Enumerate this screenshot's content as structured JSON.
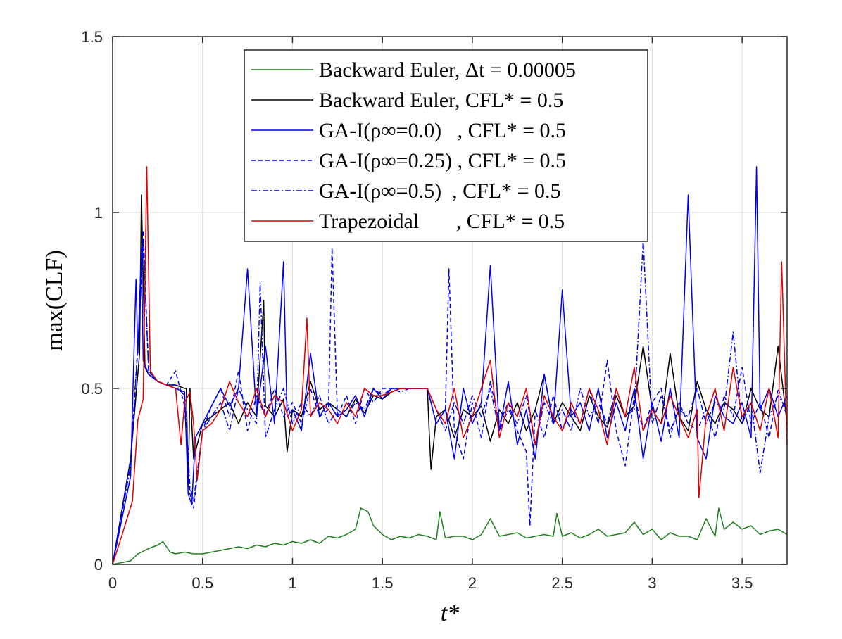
{
  "chart_data": {
    "type": "line",
    "title": "",
    "xlabel": "t*",
    "ylabel": "max(CLF)",
    "xlim": [
      0,
      3.75
    ],
    "ylim": [
      0,
      1.5
    ],
    "xticks": [
      "0",
      "0.5",
      "1",
      "1.5",
      "2",
      "2.5",
      "3",
      "3.5"
    ],
    "yticks": [
      "0",
      "0.5",
      "1",
      "1.5"
    ],
    "grid": true,
    "legend_position": "top-center",
    "series": [
      {
        "name": "Backward Euler, Δt = 0.00005",
        "color": "#1f7f1f",
        "style": "solid",
        "x": [
          0,
          0.05,
          0.1,
          0.14,
          0.2,
          0.25,
          0.28,
          0.32,
          0.35,
          0.4,
          0.45,
          0.5,
          0.55,
          0.6,
          0.65,
          0.7,
          0.75,
          0.8,
          0.85,
          0.9,
          0.95,
          1.0,
          1.05,
          1.1,
          1.15,
          1.2,
          1.25,
          1.3,
          1.35,
          1.38,
          1.42,
          1.45,
          1.5,
          1.55,
          1.6,
          1.65,
          1.7,
          1.75,
          1.8,
          1.82,
          1.85,
          1.9,
          1.95,
          2.0,
          2.05,
          2.1,
          2.15,
          2.2,
          2.25,
          2.3,
          2.35,
          2.4,
          2.45,
          2.47,
          2.5,
          2.55,
          2.6,
          2.65,
          2.7,
          2.75,
          2.8,
          2.85,
          2.9,
          2.95,
          3.0,
          3.05,
          3.1,
          3.15,
          3.2,
          3.25,
          3.3,
          3.35,
          3.37,
          3.4,
          3.45,
          3.5,
          3.55,
          3.6,
          3.65,
          3.7,
          3.75
        ],
        "values": [
          0,
          0.005,
          0.01,
          0.03,
          0.045,
          0.055,
          0.065,
          0.035,
          0.03,
          0.035,
          0.03,
          0.03,
          0.035,
          0.04,
          0.045,
          0.05,
          0.045,
          0.055,
          0.05,
          0.06,
          0.055,
          0.065,
          0.06,
          0.07,
          0.06,
          0.08,
          0.075,
          0.085,
          0.1,
          0.16,
          0.15,
          0.11,
          0.085,
          0.07,
          0.08,
          0.075,
          0.085,
          0.08,
          0.07,
          0.15,
          0.075,
          0.08,
          0.08,
          0.07,
          0.085,
          0.13,
          0.08,
          0.085,
          0.09,
          0.075,
          0.08,
          0.085,
          0.08,
          0.145,
          0.08,
          0.09,
          0.075,
          0.085,
          0.1,
          0.08,
          0.085,
          0.09,
          0.12,
          0.085,
          0.1,
          0.07,
          0.09,
          0.08,
          0.08,
          0.07,
          0.13,
          0.08,
          0.16,
          0.1,
          0.12,
          0.1,
          0.11,
          0.085,
          0.095,
          0.1,
          0.085
        ]
      },
      {
        "name": "Backward Euler, CFL* = 0.5",
        "color": "#000000",
        "style": "solid",
        "x": [
          0,
          0.1,
          0.15,
          0.16,
          0.18,
          0.2,
          0.25,
          0.3,
          0.35,
          0.4,
          0.41,
          0.42,
          0.43,
          0.45,
          0.5,
          0.55,
          0.6,
          0.65,
          0.7,
          0.75,
          0.8,
          0.84,
          0.85,
          0.9,
          0.95,
          0.97,
          1.0,
          1.05,
          1.1,
          1.15,
          1.2,
          1.25,
          1.3,
          1.35,
          1.4,
          1.45,
          1.5,
          1.55,
          1.6,
          1.65,
          1.7,
          1.75,
          1.76,
          1.77,
          1.8,
          1.85,
          1.9,
          1.95,
          2.0,
          2.05,
          2.1,
          2.15,
          2.2,
          2.25,
          2.3,
          2.35,
          2.4,
          2.45,
          2.5,
          2.55,
          2.6,
          2.65,
          2.7,
          2.75,
          2.8,
          2.85,
          2.9,
          2.95,
          3.0,
          3.05,
          3.1,
          3.15,
          3.2,
          3.25,
          3.3,
          3.35,
          3.4,
          3.45,
          3.5,
          3.55,
          3.6,
          3.65,
          3.7,
          3.75
        ],
        "values": [
          0,
          0.3,
          0.6,
          1.05,
          0.56,
          0.54,
          0.52,
          0.51,
          0.51,
          0.5,
          0.5,
          0.22,
          0.5,
          0.3,
          0.4,
          0.42,
          0.44,
          0.46,
          0.4,
          0.46,
          0.42,
          0.75,
          0.45,
          0.42,
          0.47,
          0.32,
          0.44,
          0.42,
          0.52,
          0.44,
          0.46,
          0.44,
          0.42,
          0.47,
          0.43,
          0.48,
          0.47,
          0.49,
          0.5,
          0.5,
          0.5,
          0.5,
          0.38,
          0.27,
          0.42,
          0.44,
          0.36,
          0.44,
          0.42,
          0.45,
          0.35,
          0.44,
          0.4,
          0.46,
          0.38,
          0.44,
          0.54,
          0.4,
          0.46,
          0.42,
          0.38,
          0.48,
          0.42,
          0.39,
          0.48,
          0.42,
          0.45,
          0.62,
          0.44,
          0.4,
          0.6,
          0.42,
          0.38,
          0.52,
          0.44,
          0.4,
          0.46,
          0.44,
          0.4,
          0.5,
          0.44,
          0.42,
          0.62,
          0.4
        ]
      },
      {
        "name": "GA-I(ρ∞=0.0)   , CFL* = 0.5",
        "color": "#0000ee",
        "style": "solid",
        "x": [
          0,
          0.1,
          0.13,
          0.14,
          0.16,
          0.17,
          0.2,
          0.25,
          0.3,
          0.35,
          0.4,
          0.42,
          0.44,
          0.46,
          0.5,
          0.55,
          0.6,
          0.65,
          0.7,
          0.75,
          0.8,
          0.85,
          0.9,
          0.95,
          0.97,
          1.0,
          1.05,
          1.1,
          1.15,
          1.2,
          1.25,
          1.3,
          1.35,
          1.4,
          1.45,
          1.5,
          1.55,
          1.6,
          1.65,
          1.7,
          1.75,
          1.8,
          1.85,
          1.9,
          1.95,
          2.0,
          2.05,
          2.1,
          2.15,
          2.2,
          2.25,
          2.3,
          2.35,
          2.4,
          2.45,
          2.5,
          2.55,
          2.6,
          2.65,
          2.7,
          2.75,
          2.8,
          2.85,
          2.9,
          2.95,
          3.0,
          3.05,
          3.1,
          3.15,
          3.2,
          3.25,
          3.3,
          3.35,
          3.4,
          3.45,
          3.5,
          3.55,
          3.58,
          3.6,
          3.65,
          3.7,
          3.75
        ],
        "values": [
          0,
          0.25,
          0.81,
          0.6,
          0.9,
          0.58,
          0.54,
          0.52,
          0.51,
          0.5,
          0.49,
          0.2,
          0.17,
          0.36,
          0.4,
          0.45,
          0.5,
          0.45,
          0.5,
          0.84,
          0.42,
          0.62,
          0.4,
          0.86,
          0.42,
          0.44,
          0.38,
          0.6,
          0.42,
          0.46,
          0.42,
          0.44,
          0.48,
          0.42,
          0.5,
          0.47,
          0.5,
          0.5,
          0.5,
          0.5,
          0.5,
          0.4,
          0.44,
          0.3,
          0.5,
          0.4,
          0.46,
          0.85,
          0.38,
          0.52,
          0.34,
          0.44,
          0.3,
          0.54,
          0.4,
          0.78,
          0.42,
          0.46,
          0.38,
          0.5,
          0.36,
          0.46,
          0.38,
          0.5,
          0.3,
          0.46,
          0.35,
          0.5,
          0.36,
          1.05,
          0.36,
          0.3,
          0.48,
          0.42,
          0.4,
          0.46,
          0.36,
          1.13,
          0.44,
          0.5,
          0.42,
          0.48
        ]
      },
      {
        "name": "GA-I(ρ∞=0.25) , CFL* = 0.5",
        "color": "#0000ee",
        "style": "dashed",
        "x": [
          0,
          0.1,
          0.15,
          0.17,
          0.2,
          0.25,
          0.3,
          0.35,
          0.4,
          0.43,
          0.45,
          0.5,
          0.55,
          0.6,
          0.65,
          0.7,
          0.75,
          0.8,
          0.85,
          0.9,
          0.95,
          1.0,
          1.05,
          1.1,
          1.15,
          1.2,
          1.22,
          1.25,
          1.3,
          1.35,
          1.4,
          1.45,
          1.5,
          1.55,
          1.6,
          1.65,
          1.7,
          1.75,
          1.8,
          1.85,
          1.87,
          1.9,
          1.95,
          2.0,
          2.05,
          2.1,
          2.15,
          2.2,
          2.25,
          2.3,
          2.32,
          2.35,
          2.4,
          2.45,
          2.5,
          2.55,
          2.6,
          2.65,
          2.7,
          2.75,
          2.8,
          2.85,
          2.9,
          2.95,
          3.0,
          3.05,
          3.1,
          3.15,
          3.2,
          3.25,
          3.3,
          3.35,
          3.4,
          3.45,
          3.5,
          3.55,
          3.6,
          3.65,
          3.7,
          3.75
        ],
        "values": [
          0,
          0.3,
          0.7,
          0.95,
          0.55,
          0.52,
          0.51,
          0.55,
          0.45,
          0.2,
          0.16,
          0.38,
          0.45,
          0.5,
          0.42,
          0.55,
          0.38,
          0.48,
          0.42,
          0.5,
          0.42,
          0.46,
          0.4,
          0.5,
          0.42,
          0.44,
          0.9,
          0.42,
          0.48,
          0.4,
          0.5,
          0.46,
          0.5,
          0.5,
          0.5,
          0.5,
          0.5,
          0.5,
          0.4,
          0.44,
          0.84,
          0.38,
          0.3,
          0.46,
          0.36,
          0.52,
          0.4,
          0.46,
          0.38,
          0.32,
          0.11,
          0.44,
          0.36,
          0.48,
          0.38,
          0.44,
          0.4,
          0.5,
          0.4,
          0.58,
          0.38,
          0.28,
          0.48,
          0.38,
          0.46,
          0.5,
          0.36,
          0.46,
          0.4,
          0.38,
          0.44,
          0.36,
          0.48,
          0.42,
          0.56,
          0.4,
          0.46,
          0.36,
          0.5,
          0.42
        ]
      },
      {
        "name": "GA-I(ρ∞=0.5)  , CFL* = 0.5",
        "color": "#0000ee",
        "style": "dashdot",
        "x": [
          0,
          0.1,
          0.15,
          0.17,
          0.2,
          0.25,
          0.3,
          0.35,
          0.4,
          0.43,
          0.45,
          0.5,
          0.55,
          0.6,
          0.65,
          0.7,
          0.75,
          0.8,
          0.82,
          0.85,
          0.9,
          0.95,
          1.0,
          1.05,
          1.1,
          1.15,
          1.2,
          1.25,
          1.3,
          1.35,
          1.4,
          1.45,
          1.5,
          1.55,
          1.6,
          1.65,
          1.7,
          1.75,
          1.8,
          1.85,
          1.9,
          1.95,
          2.0,
          2.05,
          2.1,
          2.15,
          2.2,
          2.25,
          2.3,
          2.35,
          2.4,
          2.45,
          2.5,
          2.55,
          2.6,
          2.65,
          2.7,
          2.75,
          2.8,
          2.85,
          2.9,
          2.95,
          3.0,
          3.05,
          3.1,
          3.15,
          3.2,
          3.25,
          3.3,
          3.35,
          3.4,
          3.45,
          3.5,
          3.55,
          3.6,
          3.65,
          3.7,
          3.75
        ],
        "values": [
          0,
          0.28,
          0.7,
          0.92,
          0.55,
          0.52,
          0.51,
          0.51,
          0.48,
          0.22,
          0.18,
          0.38,
          0.42,
          0.46,
          0.38,
          0.5,
          0.44,
          0.4,
          0.8,
          0.36,
          0.44,
          0.5,
          0.4,
          0.46,
          0.42,
          0.48,
          0.4,
          0.44,
          0.42,
          0.46,
          0.44,
          0.5,
          0.48,
          0.5,
          0.49,
          0.5,
          0.5,
          0.5,
          0.44,
          0.38,
          0.46,
          0.4,
          0.48,
          0.42,
          0.5,
          0.38,
          0.44,
          0.4,
          0.48,
          0.34,
          0.46,
          0.4,
          0.44,
          0.38,
          0.5,
          0.42,
          0.46,
          0.4,
          0.5,
          0.42,
          0.44,
          0.92,
          0.4,
          0.48,
          0.38,
          0.44,
          0.42,
          0.5,
          0.4,
          0.46,
          0.44,
          0.66,
          0.4,
          0.46,
          0.26,
          0.42,
          0.48,
          0.44
        ]
      },
      {
        "name": "Trapezoidal       , CFL* = 0.5",
        "color": "#e00000",
        "style": "solid",
        "x": [
          0,
          0.05,
          0.11,
          0.14,
          0.17,
          0.19,
          0.21,
          0.25,
          0.3,
          0.35,
          0.38,
          0.4,
          0.43,
          0.45,
          0.47,
          0.5,
          0.55,
          0.6,
          0.65,
          0.7,
          0.75,
          0.8,
          0.85,
          0.9,
          0.95,
          1.0,
          1.05,
          1.08,
          1.1,
          1.15,
          1.2,
          1.25,
          1.3,
          1.35,
          1.4,
          1.45,
          1.5,
          1.55,
          1.6,
          1.65,
          1.7,
          1.75,
          1.8,
          1.85,
          1.9,
          1.95,
          2.0,
          2.05,
          2.1,
          2.15,
          2.2,
          2.25,
          2.3,
          2.35,
          2.4,
          2.45,
          2.5,
          2.55,
          2.6,
          2.65,
          2.7,
          2.75,
          2.8,
          2.85,
          2.9,
          2.95,
          3.0,
          3.05,
          3.1,
          3.15,
          3.2,
          3.25,
          3.26,
          3.3,
          3.35,
          3.4,
          3.45,
          3.5,
          3.55,
          3.6,
          3.65,
          3.7,
          3.72,
          3.75
        ],
        "values": [
          0,
          0.08,
          0.18,
          0.41,
          0.47,
          1.13,
          0.55,
          0.52,
          0.51,
          0.5,
          0.34,
          0.46,
          0.49,
          0.4,
          0.24,
          0.38,
          0.4,
          0.44,
          0.52,
          0.46,
          0.42,
          0.5,
          0.42,
          0.48,
          0.46,
          0.38,
          0.44,
          0.7,
          0.42,
          0.46,
          0.44,
          0.4,
          0.46,
          0.42,
          0.5,
          0.48,
          0.48,
          0.49,
          0.5,
          0.5,
          0.5,
          0.5,
          0.44,
          0.4,
          0.5,
          0.36,
          0.42,
          0.5,
          0.58,
          0.36,
          0.46,
          0.42,
          0.5,
          0.34,
          0.48,
          0.42,
          0.38,
          0.46,
          0.4,
          0.5,
          0.44,
          0.34,
          0.5,
          0.42,
          0.56,
          0.38,
          0.44,
          0.4,
          0.48,
          0.42,
          0.36,
          0.44,
          0.19,
          0.42,
          0.5,
          0.38,
          0.56,
          0.42,
          0.46,
          0.38,
          0.5,
          0.36,
          0.86,
          0.34
        ]
      }
    ],
    "legend": [
      {
        "label": "Backward Euler, Δt = 0.00005"
      },
      {
        "label": "Backward Euler, CFL* = 0.5"
      },
      {
        "label": "GA-I(ρ∞=0.0)   , CFL* = 0.5"
      },
      {
        "label": "GA-I(ρ∞=0.25) , CFL* = 0.5"
      },
      {
        "label": "GA-I(ρ∞=0.5)  , CFL* = 0.5"
      },
      {
        "label": "Trapezoidal       , CFL* = 0.5"
      }
    ]
  }
}
